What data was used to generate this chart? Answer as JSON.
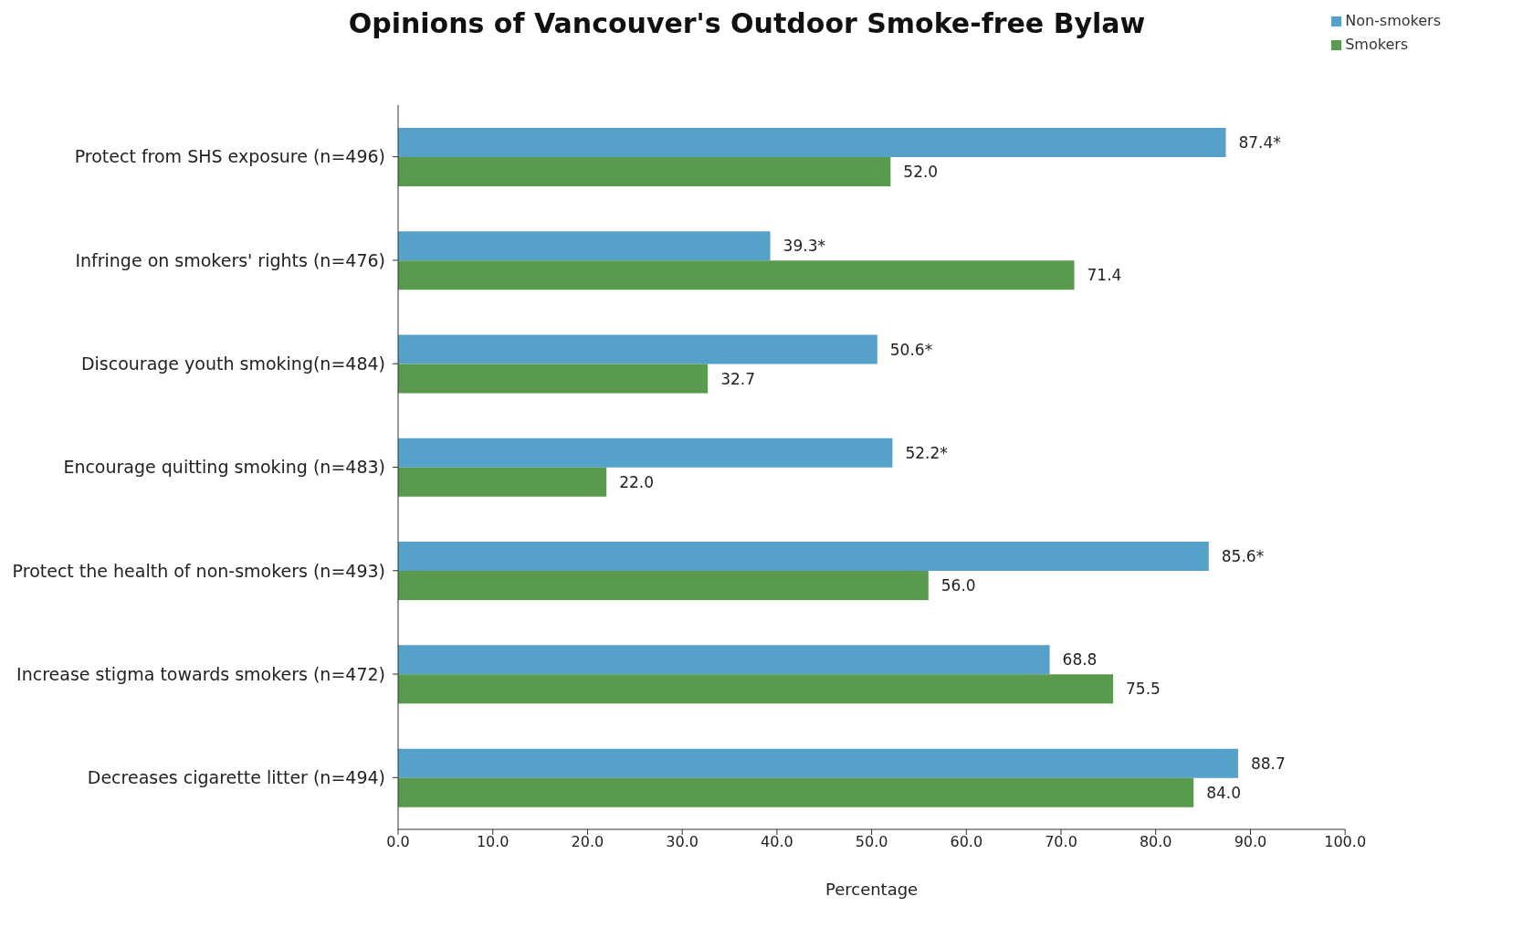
{
  "chart_data": {
    "type": "bar",
    "orientation": "horizontal",
    "title": "Opinions of Vancouver's Outdoor Smoke-free Bylaw",
    "xlabel": "Percentage",
    "categories": [
      "Protect from SHS exposure (n=496)",
      "Infringe on smokers' rights (n=476)",
      "Discourage youth smoking(n=484)",
      "Encourage quitting smoking (n=483)",
      "Protect the health of non-smokers (n=493)",
      "Increase stigma towards smokers (n=472)",
      "Decreases cigarette litter (n=494)"
    ],
    "series": [
      {
        "name": "Non-smokers",
        "color": "#55a1c9",
        "values": [
          87.4,
          39.3,
          50.6,
          52.2,
          85.6,
          68.8,
          88.7
        ],
        "value_labels": [
          "87.4*",
          "39.3*",
          "50.6*",
          "52.2*",
          "85.6*",
          "68.8",
          "88.7"
        ]
      },
      {
        "name": "Smokers",
        "color": "#5a9a4f",
        "values": [
          52.0,
          71.4,
          32.7,
          22.0,
          56.0,
          75.5,
          84.0
        ],
        "value_labels": [
          "52.0",
          "71.4",
          "32.7",
          "22.0",
          "56.0",
          "75.5",
          "84.0"
        ]
      }
    ],
    "xlim": [
      0,
      100
    ],
    "xticks": [
      {
        "value": 0,
        "label": "0.0"
      },
      {
        "value": 10,
        "label": "10.0"
      },
      {
        "value": 20,
        "label": "20.0"
      },
      {
        "value": 30,
        "label": "30.0"
      },
      {
        "value": 40,
        "label": "40.0"
      },
      {
        "value": 50,
        "label": "50.0"
      },
      {
        "value": 60,
        "label": "60.0"
      },
      {
        "value": 70,
        "label": "70.0"
      },
      {
        "value": 80,
        "label": "80.0"
      },
      {
        "value": 90,
        "label": "90.0"
      },
      {
        "value": 100,
        "label": "100.0"
      }
    ],
    "grid": false,
    "legend": "top right"
  }
}
